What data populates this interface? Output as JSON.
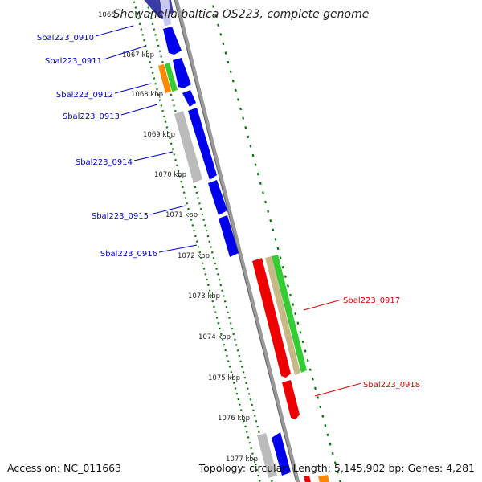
{
  "title": "Shewanella baltica OS223, complete genome",
  "footer": {
    "accession": "Accession: NC_011663",
    "summary": "Topology: circular; Length: 5,145,902 bp; Genes: 4,281"
  },
  "colors": {
    "forward_label": "#0000cc",
    "reverse_label": "#dd0000",
    "dots": "#007700",
    "backbone": "#888888",
    "cds_blue": "#0000ee",
    "cds_red": "#ee0000",
    "gray": "#bbbbbb",
    "tan": "#c8b886",
    "green": "#33cc33",
    "orange": "#ff8800"
  },
  "ticks": [
    "1066",
    "1067 kbp",
    "1068 kbp",
    "1069 kbp",
    "1070 kbp",
    "1071 kbp",
    "1072 kbp",
    "1073 kbp",
    "1074 kbp",
    "1075 kbp",
    "1076 kbp",
    "1077 kbp"
  ],
  "gene_labels_forward": [
    "Sbal223_0910",
    "Sbal223_0911",
    "Sbal223_0912",
    "Sbal223_0913",
    "Sbal223_0914",
    "Sbal223_0915",
    "Sbal223_0916"
  ],
  "gene_labels_reverse": [
    "Sbal223_0917",
    "Sbal223_0918"
  ]
}
